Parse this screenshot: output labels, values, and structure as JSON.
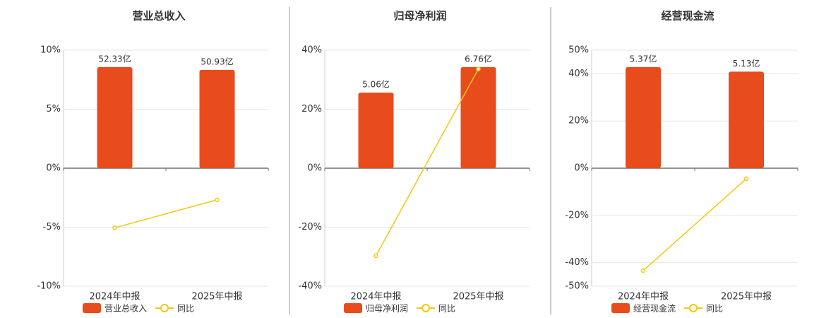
{
  "chart_data": [
    {
      "type": "bar",
      "title": "营业总收入",
      "categories": [
        "2024年中报",
        "2025年中报"
      ],
      "series": [
        {
          "name": "营业总收入",
          "color": "#e84c1c",
          "values": [
            52.33,
            50.93
          ],
          "value_labels": [
            "52.33亿",
            "50.93亿"
          ]
        },
        {
          "name": "同比",
          "color": "#f2c811",
          "type": "line",
          "values": [
            -5.05,
            -2.68
          ]
        }
      ],
      "ylim": [
        -10,
        10
      ],
      "yticks": [
        {
          "value": 10,
          "label": "10%"
        },
        {
          "value": 5,
          "label": "5%"
        },
        {
          "value": 0,
          "label": "0%"
        },
        {
          "value": -5,
          "label": "-5%"
        },
        {
          "value": -10,
          "label": "-10%"
        }
      ],
      "grid": true
    },
    {
      "type": "bar",
      "title": "归母净利润",
      "categories": [
        "2024年中报",
        "2025年中报"
      ],
      "series": [
        {
          "name": "归母净利润",
          "color": "#e84c1c",
          "values": [
            5.06,
            6.76
          ],
          "value_labels": [
            "5.06亿",
            "6.76亿"
          ]
        },
        {
          "name": "同比",
          "color": "#f2c811",
          "type": "line",
          "values": [
            -29.7,
            33.6
          ]
        }
      ],
      "ylim": [
        -40,
        40
      ],
      "yticks": [
        {
          "value": 40,
          "label": "40%"
        },
        {
          "value": 20,
          "label": "20%"
        },
        {
          "value": 0,
          "label": "0%"
        },
        {
          "value": -20,
          "label": "-20%"
        },
        {
          "value": -40,
          "label": "-40%"
        }
      ],
      "grid": true
    },
    {
      "type": "bar",
      "title": "经营现金流",
      "categories": [
        "2024年中报",
        "2025年中报"
      ],
      "series": [
        {
          "name": "经营现金流",
          "color": "#e84c1c",
          "values": [
            5.37,
            5.13
          ],
          "value_labels": [
            "5.37亿",
            "5.13亿"
          ]
        },
        {
          "name": "同比",
          "color": "#f2c811",
          "type": "line",
          "values": [
            -43.4,
            -4.47
          ]
        }
      ],
      "ylim": [
        -50,
        50
      ],
      "yticks": [
        {
          "value": 50,
          "label": "50%"
        },
        {
          "value": 40,
          "label": "40%"
        },
        {
          "value": 20,
          "label": "20%"
        },
        {
          "value": 0,
          "label": "0%"
        },
        {
          "value": -20,
          "label": "-20%"
        },
        {
          "value": -40,
          "label": "-40%"
        },
        {
          "value": -50,
          "label": "-50%"
        }
      ],
      "grid": true
    }
  ]
}
